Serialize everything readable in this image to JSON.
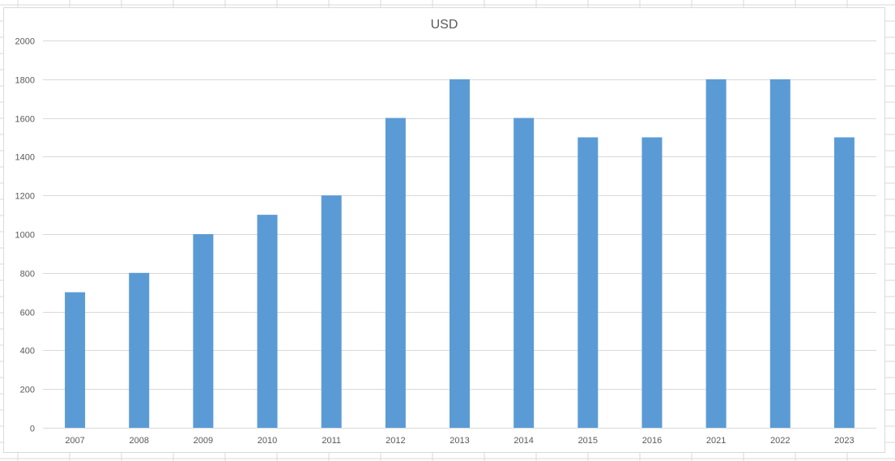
{
  "chart_data": {
    "type": "bar",
    "title": "USD",
    "xlabel": "",
    "ylabel": "",
    "categories": [
      "2007",
      "2008",
      "2009",
      "2010",
      "2011",
      "2012",
      "2013",
      "2014",
      "2015",
      "2016",
      "2021",
      "2022",
      "2023"
    ],
    "values": [
      700,
      800,
      1000,
      1100,
      1200,
      1600,
      1800,
      1600,
      1500,
      1500,
      1800,
      1800,
      1500
    ],
    "ylim": [
      0,
      2000
    ],
    "yticks": [
      0,
      200,
      400,
      600,
      800,
      1000,
      1200,
      1400,
      1600,
      1800,
      2000
    ],
    "grid": true,
    "legend": "none",
    "bar_color": "#5b9bd5",
    "gridline_color": "#d9d9d9"
  }
}
